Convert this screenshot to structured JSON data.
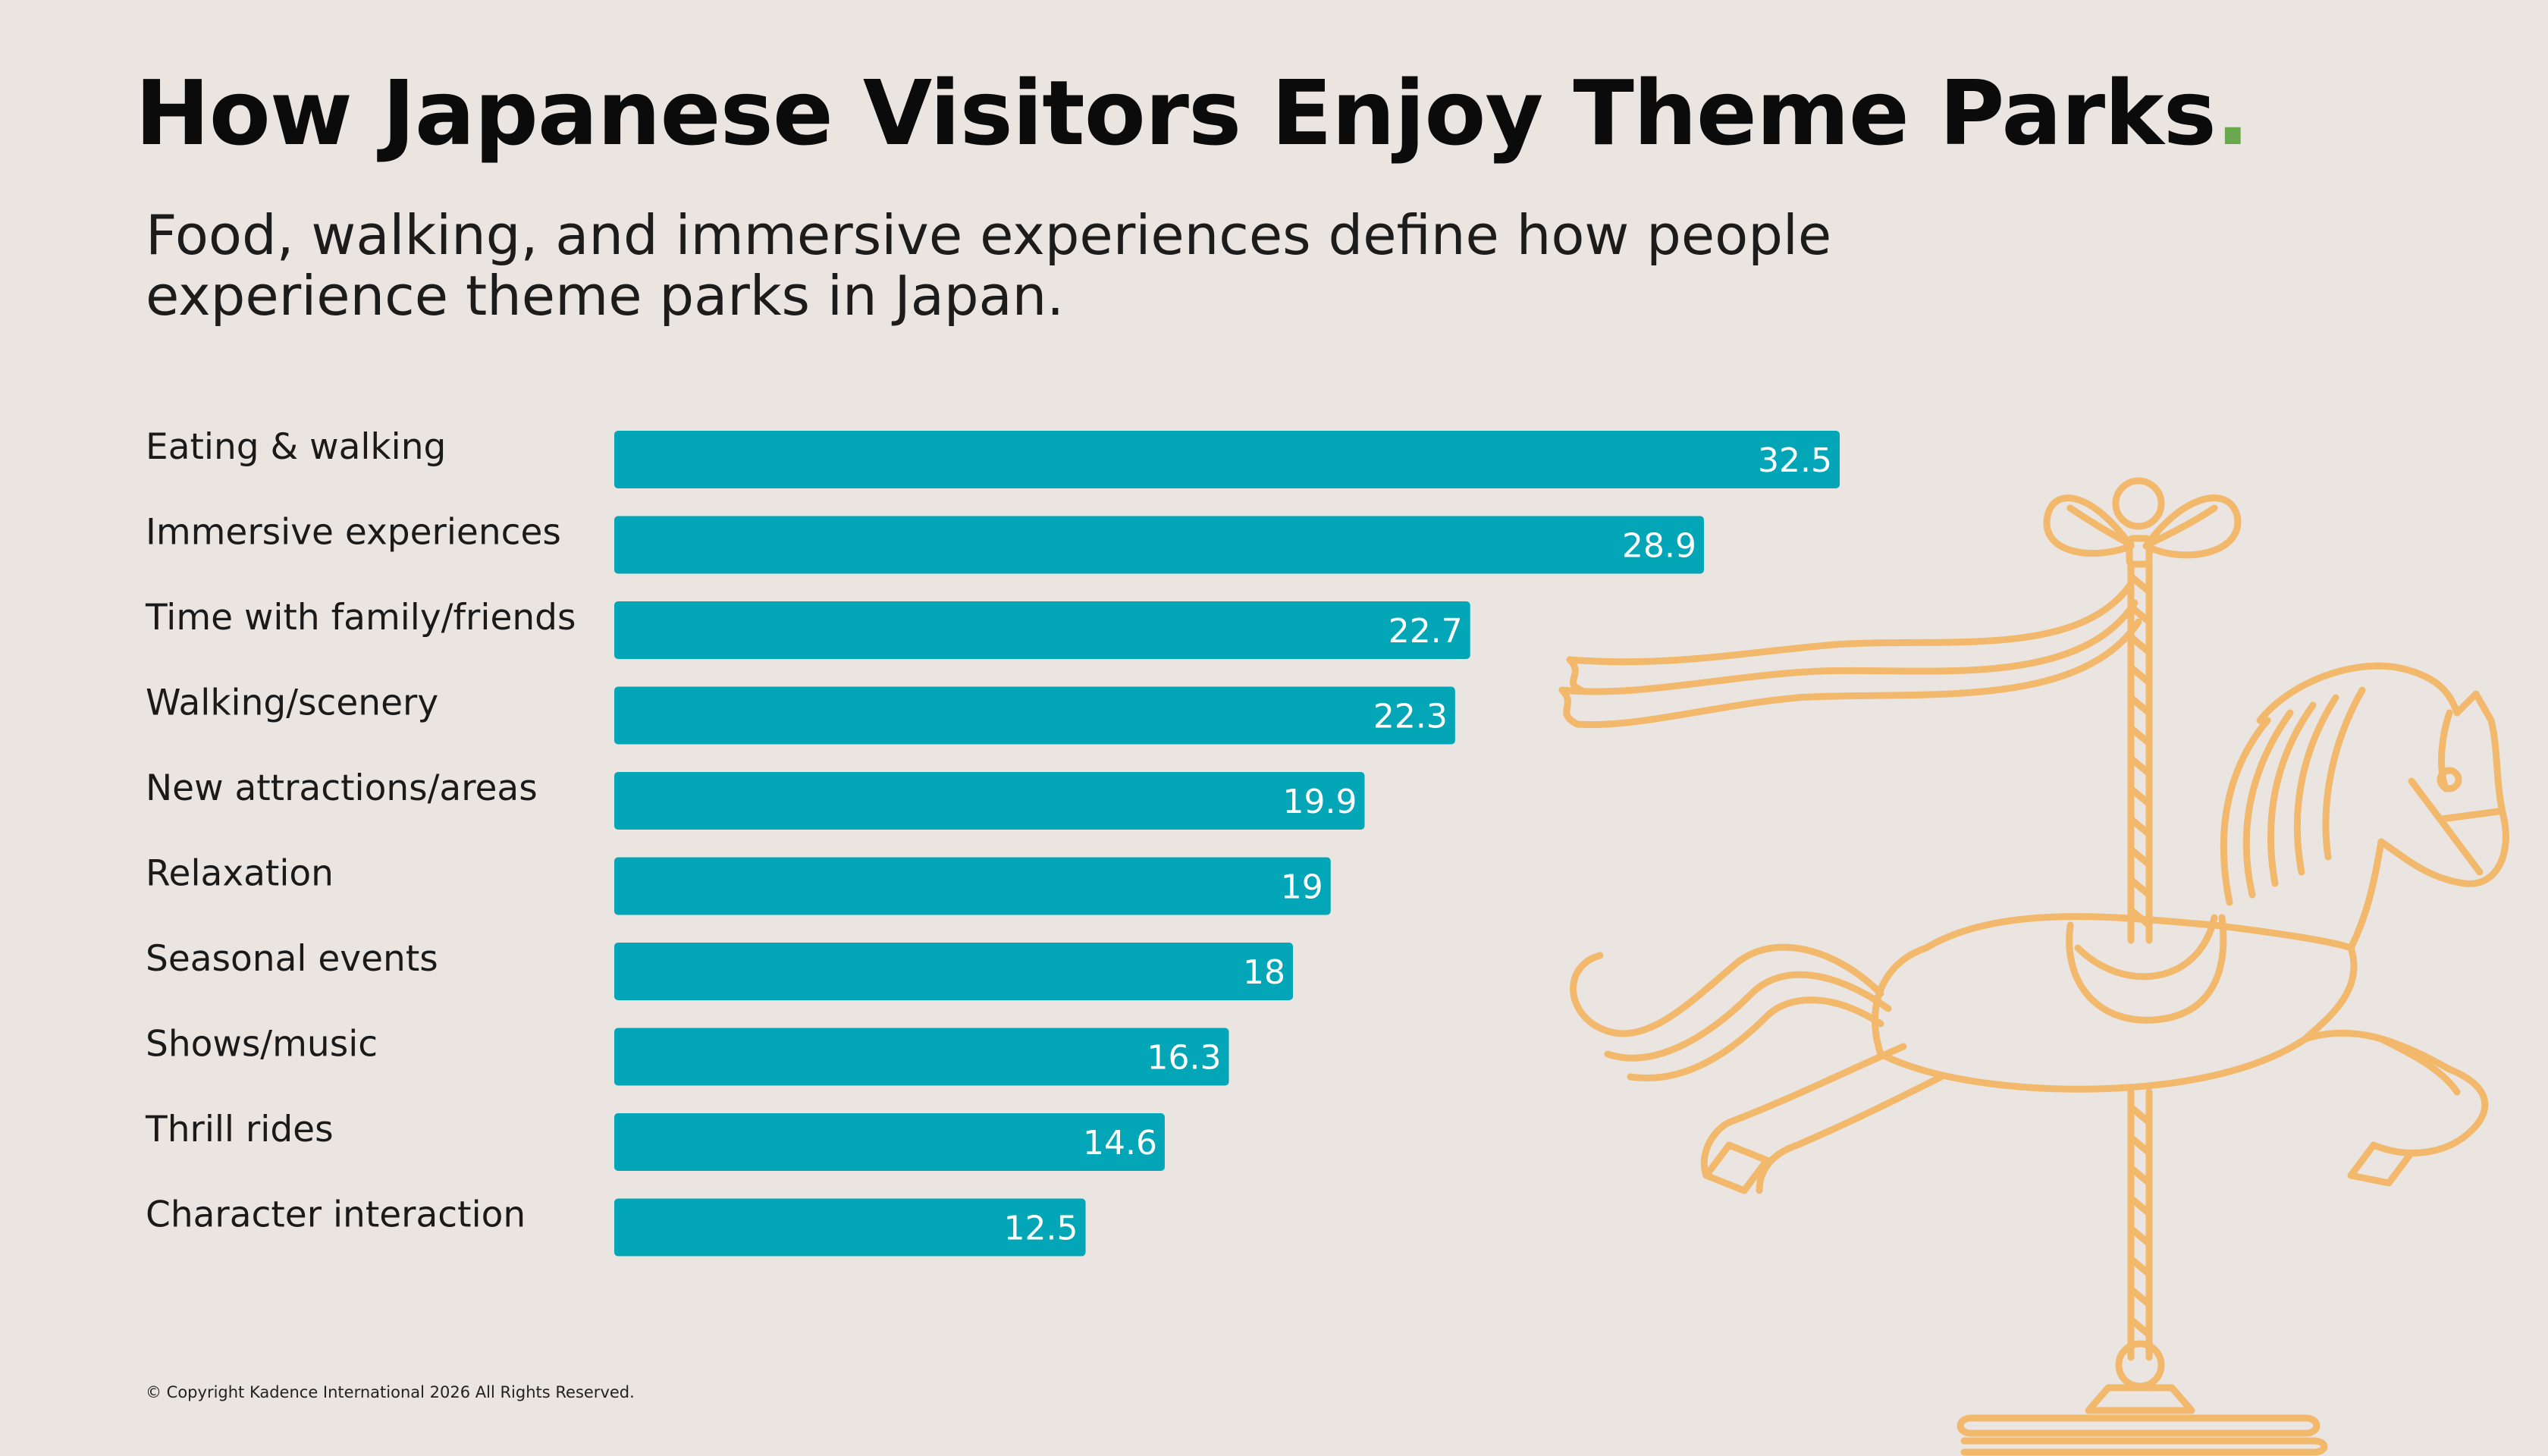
{
  "header": {
    "title": "How Japanese Visitors Enjoy Theme Parks",
    "title_dot": ".",
    "subtitle": "Food, walking, and immersive experiences define how people experience theme parks in Japan."
  },
  "chart_data": {
    "type": "bar",
    "orientation": "horizontal",
    "title": "How Japanese Visitors Enjoy Theme Parks",
    "categories": [
      "Eating & walking",
      "Immersive experiences",
      "Time with family/friends",
      "Walking/scenery",
      "New attractions/areas",
      "Relaxation",
      "Seasonal events",
      "Shows/music",
      "Thrill rides",
      "Character interaction"
    ],
    "values": [
      32.5,
      28.9,
      22.7,
      22.3,
      19.9,
      19,
      18,
      16.3,
      14.6,
      12.5
    ],
    "data_labels": [
      "32.5",
      "28.9",
      "22.7",
      "22.3",
      "19.9",
      "19",
      "18",
      "16.3",
      "14.6",
      "12.5"
    ],
    "xlabel": "",
    "ylabel": "",
    "xlim": [
      0,
      32.5
    ],
    "grid": false,
    "legend": "none",
    "bar_color": "#02a6b6"
  },
  "illustration": {
    "icon": "carousel-horse-icon",
    "color": "#f2b86b"
  },
  "colors": {
    "background": "#ebe5e1",
    "accent_dot": "#6aa84f"
  },
  "footer": {
    "copyright": "© Copyright Kadence International 2026 All Rights Reserved."
  }
}
